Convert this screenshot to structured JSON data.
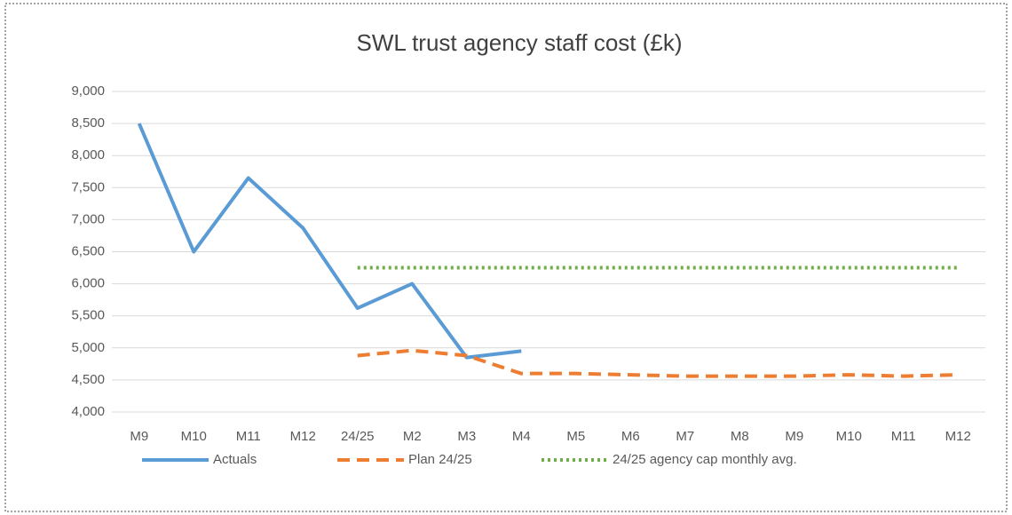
{
  "chart_data": {
    "type": "line",
    "title": "SWL trust agency staff cost (£k)",
    "categories": [
      "M9",
      "M10",
      "M11",
      "M12",
      "24/25",
      "M2",
      "M3",
      "M4",
      "M5",
      "M6",
      "M7",
      "M8",
      "M9",
      "M10",
      "M11",
      "M12"
    ],
    "series": [
      {
        "name": "Actuals",
        "color": "#5b9bd5",
        "style": "solid",
        "values": [
          8500,
          6500,
          7650,
          6870,
          5620,
          6000,
          4850,
          4950,
          null,
          null,
          null,
          null,
          null,
          null,
          null,
          null
        ]
      },
      {
        "name": "Plan 24/25",
        "color": "#ed7d31",
        "style": "dashed",
        "values": [
          null,
          null,
          null,
          null,
          4880,
          4960,
          4880,
          4600,
          4600,
          4580,
          4560,
          4560,
          4560,
          4580,
          4560,
          4580
        ]
      },
      {
        "name": "24/25 agency cap monthly avg.",
        "color": "#70ad47",
        "style": "dotted",
        "values": [
          null,
          null,
          null,
          null,
          6250,
          6250,
          6250,
          6250,
          6250,
          6250,
          6250,
          6250,
          6250,
          6250,
          6250,
          6250
        ]
      }
    ],
    "ylim": [
      4000,
      9000
    ],
    "yticks": [
      {
        "value": 4000,
        "label": "4,000"
      },
      {
        "value": 4500,
        "label": "4,500"
      },
      {
        "value": 5000,
        "label": "5,000"
      },
      {
        "value": 5500,
        "label": "5,500"
      },
      {
        "value": 6000,
        "label": "6,000"
      },
      {
        "value": 6500,
        "label": "6,500"
      },
      {
        "value": 7000,
        "label": "7,000"
      },
      {
        "value": 7500,
        "label": "7,500"
      },
      {
        "value": 8000,
        "label": "8,000"
      },
      {
        "value": 8500,
        "label": "8,500"
      },
      {
        "value": 9000,
        "label": "9,000"
      }
    ],
    "grid": true,
    "legend": "bottom"
  }
}
